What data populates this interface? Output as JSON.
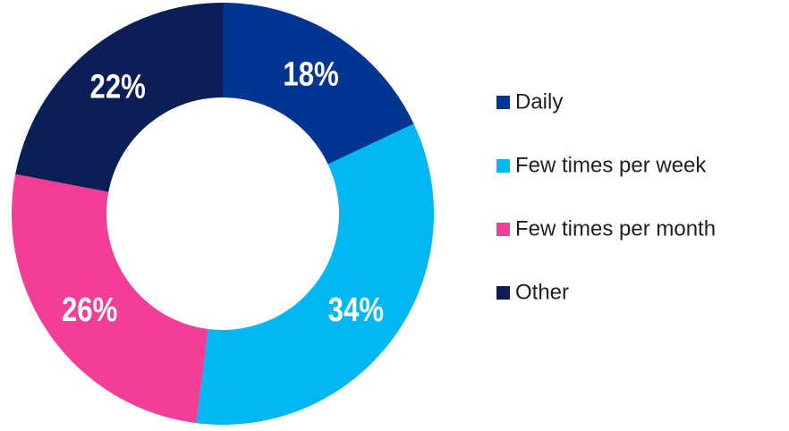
{
  "chart_data": {
    "type": "pie",
    "categories": [
      "Daily",
      "Few times per week",
      "Few times per month",
      "Other"
    ],
    "values": [
      18,
      34,
      26,
      22
    ],
    "value_labels": [
      "18%",
      "34%",
      "26%",
      "22%"
    ],
    "colors": [
      "#003591",
      "#00b7f1",
      "#f23e96",
      "#0b1f56"
    ],
    "legend": "right"
  }
}
